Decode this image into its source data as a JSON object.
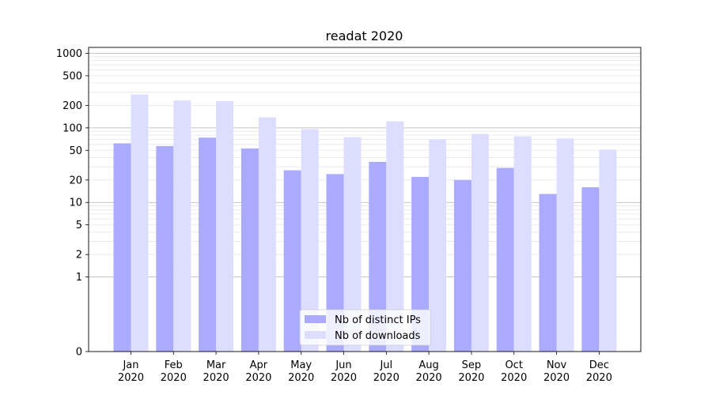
{
  "chart_data": {
    "type": "bar",
    "title": "readat 2020",
    "xlabel": "",
    "ylabel": "",
    "y_scale": "symlog",
    "ylim": [
      0,
      1200
    ],
    "y_ticks": [
      0,
      1,
      2,
      5,
      10,
      20,
      50,
      100,
      200,
      500,
      1000
    ],
    "grid": "y",
    "legend_position": "bottom-center",
    "categories": [
      [
        "Jan",
        "2020"
      ],
      [
        "Feb",
        "2020"
      ],
      [
        "Mar",
        "2020"
      ],
      [
        "Apr",
        "2020"
      ],
      [
        "May",
        "2020"
      ],
      [
        "Jun",
        "2020"
      ],
      [
        "Jul",
        "2020"
      ],
      [
        "Aug",
        "2020"
      ],
      [
        "Sep",
        "2020"
      ],
      [
        "Oct",
        "2020"
      ],
      [
        "Nov",
        "2020"
      ],
      [
        "Dec",
        "2020"
      ]
    ],
    "series": [
      {
        "name": "Nb of distinct IPs",
        "color": "#aaaaff",
        "values": [
          62,
          57,
          74,
          53,
          27,
          24,
          35,
          22,
          20,
          29,
          13,
          16
        ]
      },
      {
        "name": "Nb of downloads",
        "color": "#ddddff",
        "values": [
          280,
          233,
          228,
          138,
          96,
          75,
          122,
          70,
          83,
          77,
          72,
          51
        ]
      }
    ]
  }
}
